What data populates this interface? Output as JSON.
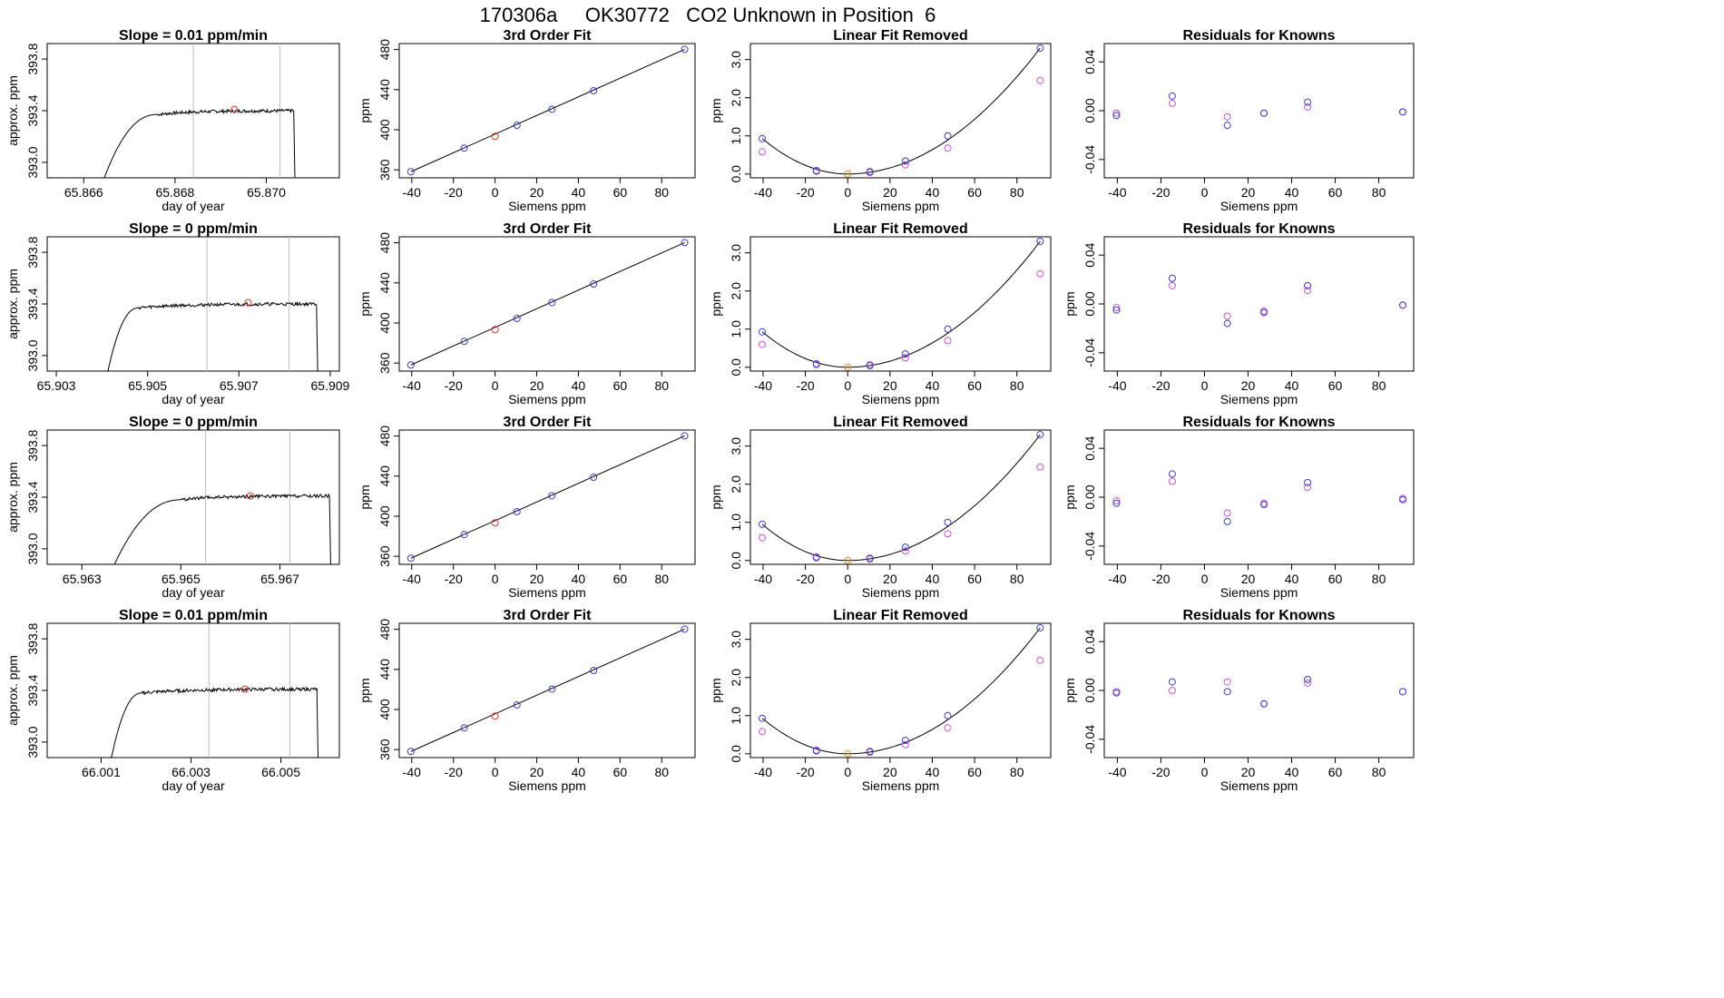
{
  "page_title": "170306a     OK30772   CO2 Unknown in Position  6",
  "colors": {
    "known": "#3b3bd6",
    "known_alt": "#d04fd6",
    "unknown": "#e03a2a",
    "unknown_fit": "#e0902a",
    "line": "#000000",
    "grid": "#bdbdbd"
  },
  "chart_data": [
    {
      "type": "line",
      "panel": "trace",
      "title": "Slope =  0.01  ppm/min",
      "xlabel": "day of year",
      "ylabel": "approx. ppm",
      "xlim": [
        65.8652,
        65.8716
      ],
      "ylim": [
        392.88,
        393.92
      ],
      "xticks": [
        65.866,
        65.868,
        65.87
      ],
      "xticklabels": [
        "65.866",
        "65.868",
        "65.870"
      ],
      "yticks": [
        393.0,
        393.4,
        393.8
      ],
      "yticklabels": [
        "393.0",
        "393.4",
        "393.8"
      ],
      "vlines": [
        65.8684,
        65.8703
      ],
      "start": 65.8664,
      "rise_end": 65.8676,
      "end": 65.8706,
      "plateau": 393.4,
      "marker": {
        "x": 65.8693,
        "y": 393.41
      }
    },
    {
      "type": "line",
      "panel": "fit",
      "title": "3rd Order Fit",
      "xlabel": "Siemens ppm",
      "ylabel": "ppm",
      "xlim": [
        -46,
        96
      ],
      "ylim": [
        352,
        486
      ],
      "xticks": [
        -40,
        -20,
        0,
        20,
        40,
        60,
        80
      ],
      "yticks": [
        360,
        400,
        440,
        480
      ],
      "known_x": [
        -40.4,
        -14.8,
        10.5,
        27.3,
        47.3,
        91.0
      ],
      "known_y": [
        358.1,
        381.7,
        404.5,
        420.4,
        438.9,
        480.2
      ],
      "unknown": {
        "x": 0,
        "y": 393.4
      }
    },
    {
      "type": "scatter",
      "panel": "linfit",
      "title": "Linear Fit Removed",
      "xlabel": "Siemens ppm",
      "ylabel": "ppm",
      "xlim": [
        -46,
        96
      ],
      "ylim": [
        -0.1,
        3.42
      ],
      "xticks": [
        -40,
        -20,
        0,
        20,
        40,
        60,
        80
      ],
      "yticks": [
        0.0,
        1.0,
        2.0,
        3.0
      ],
      "yticklabels": [
        "0.0",
        "1.0",
        "2.0",
        "3.0"
      ],
      "known_x": [
        -40.4,
        -14.8,
        10.5,
        27.3,
        47.3,
        91.0
      ],
      "known_y": [
        0.93,
        0.09,
        0.06,
        0.34,
        1.0,
        3.3
      ],
      "alt_y": [
        0.58,
        0.07,
        0.04,
        0.24,
        0.68,
        2.45
      ],
      "unknown": {
        "x": 0,
        "y": 0.0
      }
    },
    {
      "type": "scatter",
      "panel": "resid",
      "title": "Residuals for Knowns",
      "xlabel": "Siemens ppm",
      "ylabel": "",
      "xlim": [
        -46,
        96
      ],
      "ylim": [
        -0.055,
        0.055
      ],
      "xticks": [
        -40,
        -20,
        0,
        20,
        40,
        60,
        80
      ],
      "yticks": [
        -0.04,
        0.0,
        0.04
      ],
      "yticklabels": [
        "-0.04",
        "0.00",
        "0.04"
      ],
      "known_x": [
        -40.4,
        -14.8,
        10.5,
        27.3,
        47.3,
        91.0
      ],
      "known_y": [
        -0.004,
        0.012,
        -0.012,
        -0.002,
        0.007,
        -0.001
      ],
      "alt_y": [
        -0.002,
        0.006,
        -0.005,
        -0.002,
        0.003,
        -0.001
      ]
    },
    {
      "type": "line",
      "panel": "trace",
      "title": "Slope =  0  ppm/min",
      "xlabel": "day of year",
      "ylabel": "approx. ppm",
      "xlim": [
        65.9028,
        65.9092
      ],
      "ylim": [
        392.88,
        393.92
      ],
      "xticks": [
        65.903,
        65.905,
        65.907,
        65.909
      ],
      "xticklabels": [
        "65.903",
        "65.905",
        "65.907",
        "65.909"
      ],
      "yticks": [
        393.0,
        393.4,
        393.8
      ],
      "yticklabels": [
        "393.0",
        "393.4",
        "393.8"
      ],
      "vlines": [
        65.9063,
        65.9081
      ],
      "start": 65.9041,
      "rise_end": 65.9048,
      "end": 65.9087,
      "plateau": 393.4,
      "marker": {
        "x": 65.9072,
        "y": 393.41
      }
    },
    {
      "type": "line",
      "panel": "fit",
      "title": "3rd Order Fit",
      "xlabel": "Siemens ppm",
      "ylabel": "ppm",
      "xlim": [
        -46,
        96
      ],
      "ylim": [
        352,
        486
      ],
      "xticks": [
        -40,
        -20,
        0,
        20,
        40,
        60,
        80
      ],
      "yticks": [
        360,
        400,
        440,
        480
      ],
      "known_x": [
        -40.4,
        -14.8,
        10.5,
        27.3,
        47.3,
        91.0
      ],
      "known_y": [
        358.1,
        381.7,
        404.5,
        420.4,
        438.9,
        480.2
      ],
      "unknown": {
        "x": 0,
        "y": 393.4
      }
    },
    {
      "type": "scatter",
      "panel": "linfit",
      "title": "Linear Fit Removed",
      "xlabel": "Siemens ppm",
      "ylabel": "ppm",
      "xlim": [
        -46,
        96
      ],
      "ylim": [
        -0.1,
        3.42
      ],
      "xticks": [
        -40,
        -20,
        0,
        20,
        40,
        60,
        80
      ],
      "yticks": [
        0.0,
        1.0,
        2.0,
        3.0
      ],
      "yticklabels": [
        "0.0",
        "1.0",
        "2.0",
        "3.0"
      ],
      "known_x": [
        -40.4,
        -14.8,
        10.5,
        27.3,
        47.3,
        91.0
      ],
      "known_y": [
        0.93,
        0.09,
        0.06,
        0.35,
        1.0,
        3.3
      ],
      "alt_y": [
        0.6,
        0.07,
        0.04,
        0.25,
        0.7,
        2.45
      ],
      "unknown": {
        "x": 0,
        "y": 0.0
      }
    },
    {
      "type": "scatter",
      "panel": "resid",
      "title": "Residuals for Knowns",
      "xlabel": "Siemens ppm",
      "ylabel": "ppm",
      "xlim": [
        -46,
        96
      ],
      "ylim": [
        -0.055,
        0.055
      ],
      "xticks": [
        -40,
        -20,
        0,
        20,
        40,
        60,
        80
      ],
      "yticks": [
        -0.04,
        0.0,
        0.04
      ],
      "yticklabels": [
        "-0.04",
        "0.00",
        "0.04"
      ],
      "known_x": [
        -40.4,
        -14.8,
        10.5,
        27.3,
        47.3,
        91.0
      ],
      "known_y": [
        -0.005,
        0.021,
        -0.016,
        -0.007,
        0.015,
        -0.001
      ],
      "alt_y": [
        -0.003,
        0.015,
        -0.01,
        -0.006,
        0.011,
        -0.001
      ]
    },
    {
      "type": "line",
      "panel": "trace",
      "title": "Slope =  0  ppm/min",
      "xlabel": "day of year",
      "ylabel": "approx. ppm",
      "xlim": [
        65.9623,
        65.9682
      ],
      "ylim": [
        392.88,
        393.92
      ],
      "xticks": [
        65.963,
        65.965,
        65.967
      ],
      "xticklabels": [
        "65.963",
        "65.965",
        "65.967"
      ],
      "yticks": [
        393.0,
        393.4,
        393.8
      ],
      "yticklabels": [
        "393.0",
        "393.4",
        "393.8"
      ],
      "vlines": [
        65.9655,
        65.9672
      ],
      "start": 65.9636,
      "rise_end": 65.965,
      "end": 65.968,
      "plateau": 393.41,
      "marker": {
        "x": 65.9664,
        "y": 393.41
      }
    },
    {
      "type": "line",
      "panel": "fit",
      "title": "3rd Order Fit",
      "xlabel": "Siemens ppm",
      "ylabel": "ppm",
      "xlim": [
        -46,
        96
      ],
      "ylim": [
        352,
        486
      ],
      "xticks": [
        -40,
        -20,
        0,
        20,
        40,
        60,
        80
      ],
      "yticks": [
        360,
        400,
        440,
        480
      ],
      "known_x": [
        -40.4,
        -14.8,
        10.5,
        27.3,
        47.3,
        91.0
      ],
      "known_y": [
        358.1,
        381.7,
        404.5,
        420.4,
        438.9,
        480.2
      ],
      "unknown": {
        "x": 0,
        "y": 393.4
      }
    },
    {
      "type": "scatter",
      "panel": "linfit",
      "title": "Linear Fit Removed",
      "xlabel": "Siemens ppm",
      "ylabel": "ppm",
      "xlim": [
        -46,
        96
      ],
      "ylim": [
        -0.1,
        3.42
      ],
      "xticks": [
        -40,
        -20,
        0,
        20,
        40,
        60,
        80
      ],
      "yticks": [
        0.0,
        1.0,
        2.0,
        3.0
      ],
      "yticklabels": [
        "0.0",
        "1.0",
        "2.0",
        "3.0"
      ],
      "known_x": [
        -40.4,
        -14.8,
        10.5,
        27.3,
        47.3,
        91.0
      ],
      "known_y": [
        0.95,
        0.09,
        0.06,
        0.35,
        1.0,
        3.3
      ],
      "alt_y": [
        0.6,
        0.07,
        0.04,
        0.25,
        0.7,
        2.45
      ],
      "unknown": {
        "x": 0,
        "y": 0.0
      }
    },
    {
      "type": "scatter",
      "panel": "resid",
      "title": "Residuals for Knowns",
      "xlabel": "Siemens ppm",
      "ylabel": "ppm",
      "xlim": [
        -46,
        96
      ],
      "ylim": [
        -0.055,
        0.055
      ],
      "xticks": [
        -40,
        -20,
        0,
        20,
        40,
        60,
        80
      ],
      "yticks": [
        -0.04,
        0.0,
        0.04
      ],
      "yticklabels": [
        "-0.04",
        "0.00",
        "0.04"
      ],
      "known_x": [
        -40.4,
        -14.8,
        10.5,
        27.3,
        47.3,
        91.0
      ],
      "known_y": [
        -0.005,
        0.019,
        -0.02,
        -0.006,
        0.012,
        -0.002
      ],
      "alt_y": [
        -0.003,
        0.013,
        -0.013,
        -0.005,
        0.008,
        -0.001
      ]
    },
    {
      "type": "line",
      "panel": "trace",
      "title": "Slope =  0.01  ppm/min",
      "xlabel": "day of year",
      "ylabel": "approx. ppm",
      "xlim": [
        65.9998,
        66.0063
      ],
      "ylim": [
        392.88,
        393.92
      ],
      "xticks": [
        66.001,
        66.003,
        66.005
      ],
      "xticklabels": [
        "66.001",
        "66.003",
        "66.005"
      ],
      "yticks": [
        393.0,
        393.4,
        393.8
      ],
      "yticklabels": [
        "393.0",
        "393.4",
        "393.8"
      ],
      "vlines": [
        66.0034,
        66.0052
      ],
      "start": 66.0012,
      "rise_end": 66.0019,
      "end": 66.0058,
      "plateau": 393.41,
      "marker": {
        "x": 66.0042,
        "y": 393.41
      }
    },
    {
      "type": "line",
      "panel": "fit",
      "title": "3rd Order Fit",
      "xlabel": "Siemens ppm",
      "ylabel": "ppm",
      "xlim": [
        -46,
        96
      ],
      "ylim": [
        352,
        486
      ],
      "xticks": [
        -40,
        -20,
        0,
        20,
        40,
        60,
        80
      ],
      "yticks": [
        360,
        400,
        440,
        480
      ],
      "known_x": [
        -40.4,
        -14.8,
        10.5,
        27.3,
        47.3,
        91.0
      ],
      "known_y": [
        358.1,
        381.7,
        404.5,
        420.4,
        438.9,
        480.2
      ],
      "unknown": {
        "x": 0,
        "y": 393.4
      }
    },
    {
      "type": "scatter",
      "panel": "linfit",
      "title": "Linear Fit Removed",
      "xlabel": "Siemens ppm",
      "ylabel": "ppm",
      "xlim": [
        -46,
        96
      ],
      "ylim": [
        -0.1,
        3.42
      ],
      "xticks": [
        -40,
        -20,
        0,
        20,
        40,
        60,
        80
      ],
      "yticks": [
        0.0,
        1.0,
        2.0,
        3.0
      ],
      "yticklabels": [
        "0.0",
        "1.0",
        "2.0",
        "3.0"
      ],
      "known_x": [
        -40.4,
        -14.8,
        10.5,
        27.3,
        47.3,
        91.0
      ],
      "known_y": [
        0.93,
        0.09,
        0.06,
        0.35,
        1.0,
        3.3
      ],
      "alt_y": [
        0.58,
        0.07,
        0.04,
        0.24,
        0.68,
        2.45
      ],
      "unknown": {
        "x": 0,
        "y": 0.0
      }
    },
    {
      "type": "scatter",
      "panel": "resid",
      "title": "Residuals for Knowns",
      "xlabel": "Siemens ppm",
      "ylabel": "ppm",
      "xlim": [
        -46,
        96
      ],
      "ylim": [
        -0.055,
        0.055
      ],
      "xticks": [
        -40,
        -20,
        0,
        20,
        40,
        60,
        80
      ],
      "yticks": [
        -0.04,
        0.0,
        0.04
      ],
      "yticklabels": [
        "-0.04",
        "0.00",
        "0.04"
      ],
      "known_x": [
        -40.4,
        -14.8,
        10.5,
        27.3,
        47.3,
        91.0
      ],
      "known_y": [
        -0.002,
        0.007,
        -0.001,
        -0.011,
        0.009,
        -0.001
      ],
      "alt_y": [
        -0.001,
        0.0,
        0.007,
        -0.011,
        0.006,
        -0.001
      ]
    }
  ]
}
